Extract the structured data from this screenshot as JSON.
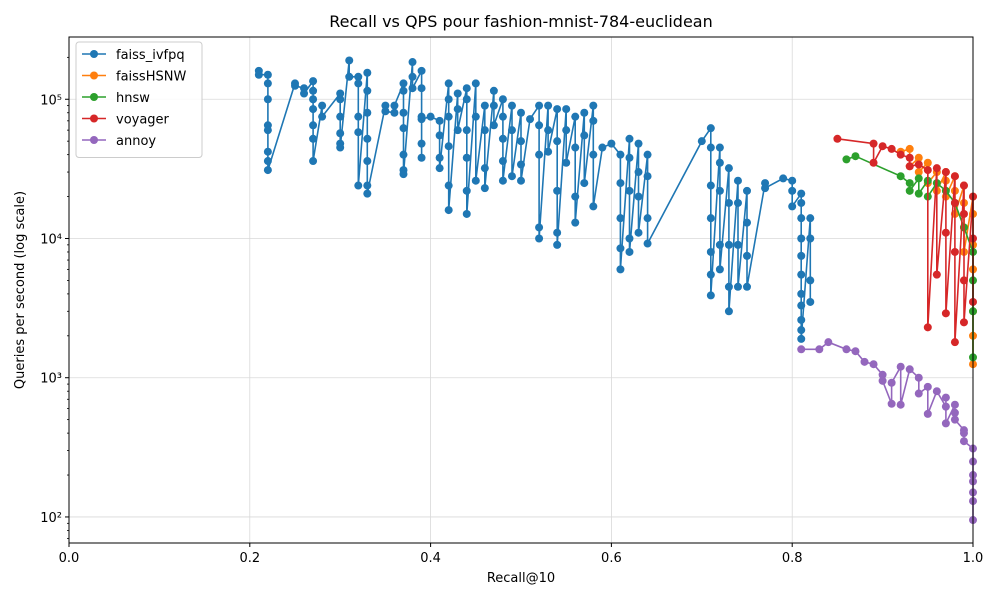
{
  "chart_data": {
    "type": "line",
    "title": "Recall vs QPS pour fashion-mnist-784-euclidean",
    "xlabel": "Recall@10",
    "ylabel": "Queries per second (log scale)",
    "xlim": [
      0.0,
      1.0
    ],
    "ylim": [
      65,
      280000
    ],
    "yscale": "log",
    "grid": true,
    "legend_position": "top-left",
    "x_ticks": [
      "0.0",
      "0.2",
      "0.4",
      "0.6",
      "0.8",
      "1.0"
    ],
    "y_ticks": [
      {
        "value": 100,
        "label": "10²"
      },
      {
        "value": 1000,
        "label": "10³"
      },
      {
        "value": 10000,
        "label": "10⁴"
      },
      {
        "value": 100000,
        "label": "10⁵"
      }
    ],
    "series": [
      {
        "name": "faiss_ivfpq",
        "color": "#1f77b4",
        "x": [
          0.21,
          0.21,
          0.22,
          0.22,
          0.22,
          0.22,
          0.22,
          0.22,
          0.22,
          0.22,
          0.25,
          0.25,
          0.26,
          0.26,
          0.27,
          0.27,
          0.27,
          0.27,
          0.27,
          0.27,
          0.27,
          0.28,
          0.28,
          0.3,
          0.3,
          0.3,
          0.3,
          0.3,
          0.3,
          0.31,
          0.31,
          0.32,
          0.32,
          0.32,
          0.32,
          0.32,
          0.33,
          0.33,
          0.33,
          0.33,
          0.33,
          0.33,
          0.33,
          0.35,
          0.35,
          0.36,
          0.36,
          0.37,
          0.37,
          0.37,
          0.37,
          0.37,
          0.37,
          0.37,
          0.38,
          0.38,
          0.38,
          0.39,
          0.39,
          0.39,
          0.39,
          0.39,
          0.39,
          0.4,
          0.41,
          0.41,
          0.41,
          0.41,
          0.42,
          0.42,
          0.42,
          0.42,
          0.42,
          0.42,
          0.43,
          0.43,
          0.43,
          0.44,
          0.44,
          0.44,
          0.44,
          0.44,
          0.44,
          0.45,
          0.45,
          0.45,
          0.46,
          0.46,
          0.46,
          0.46,
          0.47,
          0.47,
          0.47,
          0.48,
          0.48,
          0.48,
          0.48,
          0.48,
          0.49,
          0.49,
          0.49,
          0.5,
          0.5,
          0.5,
          0.5,
          0.51,
          0.52,
          0.52,
          0.52,
          0.52,
          0.52,
          0.53,
          0.53,
          0.53,
          0.54,
          0.54,
          0.54,
          0.54,
          0.54,
          0.55,
          0.55,
          0.55,
          0.56,
          0.56,
          0.56,
          0.56,
          0.57,
          0.57,
          0.57,
          0.58,
          0.58,
          0.58,
          0.58,
          0.59,
          0.6,
          0.61,
          0.61,
          0.61,
          0.61,
          0.61,
          0.62,
          0.62,
          0.62,
          0.62,
          0.62,
          0.63,
          0.63,
          0.63,
          0.63,
          0.64,
          0.64,
          0.64,
          0.64,
          0.7,
          0.71,
          0.71,
          0.71,
          0.71,
          0.71,
          0.71,
          0.71,
          0.72,
          0.72,
          0.72,
          0.72,
          0.72,
          0.73,
          0.73,
          0.73,
          0.73,
          0.73,
          0.74,
          0.74,
          0.74,
          0.74,
          0.75,
          0.75,
          0.75,
          0.75,
          0.77,
          0.77,
          0.79,
          0.8,
          0.8,
          0.8,
          0.81,
          0.81,
          0.81,
          0.81,
          0.81,
          0.81,
          0.81,
          0.81,
          0.81,
          0.81,
          0.81,
          0.82,
          0.82,
          0.82,
          0.82
        ],
        "y": [
          160000,
          150000,
          150000,
          130000,
          100000,
          65000,
          60000,
          42000,
          36000,
          31000,
          130000,
          125000,
          120000,
          110000,
          135000,
          115000,
          100000,
          85000,
          65000,
          52000,
          36000,
          90000,
          75000,
          110000,
          100000,
          75000,
          57000,
          48000,
          45000,
          190000,
          145000,
          145000,
          130000,
          75000,
          58000,
          24000,
          155000,
          115000,
          80000,
          52000,
          36000,
          24000,
          21000,
          90000,
          82000,
          80000,
          90000,
          130000,
          115000,
          80000,
          62000,
          40000,
          31000,
          29000,
          185000,
          145000,
          120000,
          160000,
          120000,
          75000,
          48000,
          38000,
          72000,
          75000,
          70000,
          55000,
          38000,
          32000,
          130000,
          100000,
          75000,
          46000,
          24000,
          16000,
          110000,
          85000,
          60000,
          120000,
          100000,
          60000,
          38000,
          22000,
          15000,
          130000,
          75000,
          26000,
          90000,
          60000,
          32000,
          23000,
          115000,
          90000,
          65000,
          100000,
          75000,
          52000,
          36000,
          26000,
          90000,
          60000,
          28000,
          80000,
          50000,
          34000,
          26000,
          72000,
          90000,
          65000,
          40000,
          12000,
          10000,
          90000,
          60000,
          42000,
          85000,
          50000,
          22000,
          11000,
          9000,
          85000,
          60000,
          35000,
          75000,
          45000,
          20000,
          13000,
          80000,
          55000,
          25000,
          90000,
          70000,
          40000,
          17000,
          45000,
          48000,
          40000,
          25000,
          14000,
          8500,
          6000,
          52000,
          38000,
          22000,
          10000,
          8000,
          48000,
          30000,
          20000,
          11000,
          40000,
          28000,
          14000,
          9200,
          50000,
          62000,
          45000,
          24000,
          14000,
          8000,
          5500,
          3900,
          45000,
          35000,
          22000,
          9000,
          6000,
          32000,
          18000,
          9000,
          4500,
          3000,
          26000,
          18000,
          9000,
          4500,
          22000,
          13000,
          7500,
          4500,
          25000,
          23000,
          27000,
          26000,
          22000,
          17000,
          21000,
          18000,
          14000,
          10000,
          7500,
          5500,
          4000,
          3300,
          2600,
          2200,
          1900,
          14000,
          10000,
          5000,
          3500
        ],
        "line": false
      },
      {
        "name": "faissHSNW",
        "color": "#ff7f0e",
        "x": [
          0.92,
          0.93,
          0.93,
          0.94,
          0.94,
          0.95,
          0.95,
          0.96,
          0.96,
          0.97,
          0.97,
          0.97,
          0.98,
          0.98,
          0.98,
          0.99,
          0.99,
          0.99,
          0.99,
          1.0,
          1.0,
          1.0,
          1.0,
          1.0,
          1.0,
          1.0
        ],
        "y": [
          42000,
          44000,
          33000,
          38000,
          30000,
          35000,
          25000,
          30000,
          22000,
          30000,
          26000,
          20000,
          28000,
          22000,
          15000,
          24000,
          18000,
          12000,
          8000,
          20000,
          15000,
          9000,
          6000,
          3000,
          2000,
          1250
        ],
        "line": true
      },
      {
        "name": "hnsw",
        "color": "#2ca02c",
        "x": [
          0.86,
          0.87,
          0.92,
          0.93,
          0.93,
          0.94,
          0.94,
          0.95,
          0.95,
          0.96,
          0.97,
          0.98,
          0.99,
          1.0,
          1.0,
          1.0,
          1.0
        ],
        "y": [
          37000,
          39000,
          28000,
          25000,
          22000,
          27000,
          21000,
          26000,
          20000,
          25000,
          22000,
          18000,
          12000,
          8000,
          5000,
          3000,
          1400
        ],
        "line": true
      },
      {
        "name": "voyager",
        "color": "#d62728",
        "x": [
          0.85,
          0.89,
          0.89,
          0.9,
          0.91,
          0.92,
          0.93,
          0.93,
          0.94,
          0.95,
          0.95,
          0.96,
          0.96,
          0.97,
          0.97,
          0.97,
          0.98,
          0.98,
          0.98,
          0.98,
          0.99,
          0.99,
          0.99,
          0.99,
          1.0,
          1.0,
          1.0
        ],
        "y": [
          52000,
          48000,
          35000,
          46000,
          44000,
          40000,
          38000,
          33000,
          34000,
          31000,
          2300,
          32000,
          5500,
          30000,
          11000,
          2900,
          28000,
          18000,
          8000,
          1800,
          24000,
          15000,
          5000,
          2500,
          20000,
          10000,
          3500
        ],
        "line": true
      },
      {
        "name": "annoy",
        "color": "#9467bd",
        "x": [
          0.81,
          0.83,
          0.84,
          0.86,
          0.87,
          0.88,
          0.89,
          0.9,
          0.9,
          0.91,
          0.91,
          0.92,
          0.92,
          0.93,
          0.94,
          0.94,
          0.95,
          0.95,
          0.96,
          0.97,
          0.97,
          0.97,
          0.98,
          0.98,
          0.98,
          0.99,
          0.99,
          0.99,
          1.0,
          1.0,
          1.0,
          1.0,
          1.0,
          1.0,
          1.0
        ],
        "y": [
          1600,
          1600,
          1800,
          1600,
          1550,
          1300,
          1250,
          1050,
          950,
          650,
          920,
          1200,
          640,
          1150,
          1000,
          770,
          860,
          550,
          800,
          620,
          720,
          470,
          640,
          560,
          500,
          420,
          400,
          350,
          310,
          250,
          200,
          180,
          150,
          130,
          95
        ],
        "line": true
      }
    ]
  }
}
